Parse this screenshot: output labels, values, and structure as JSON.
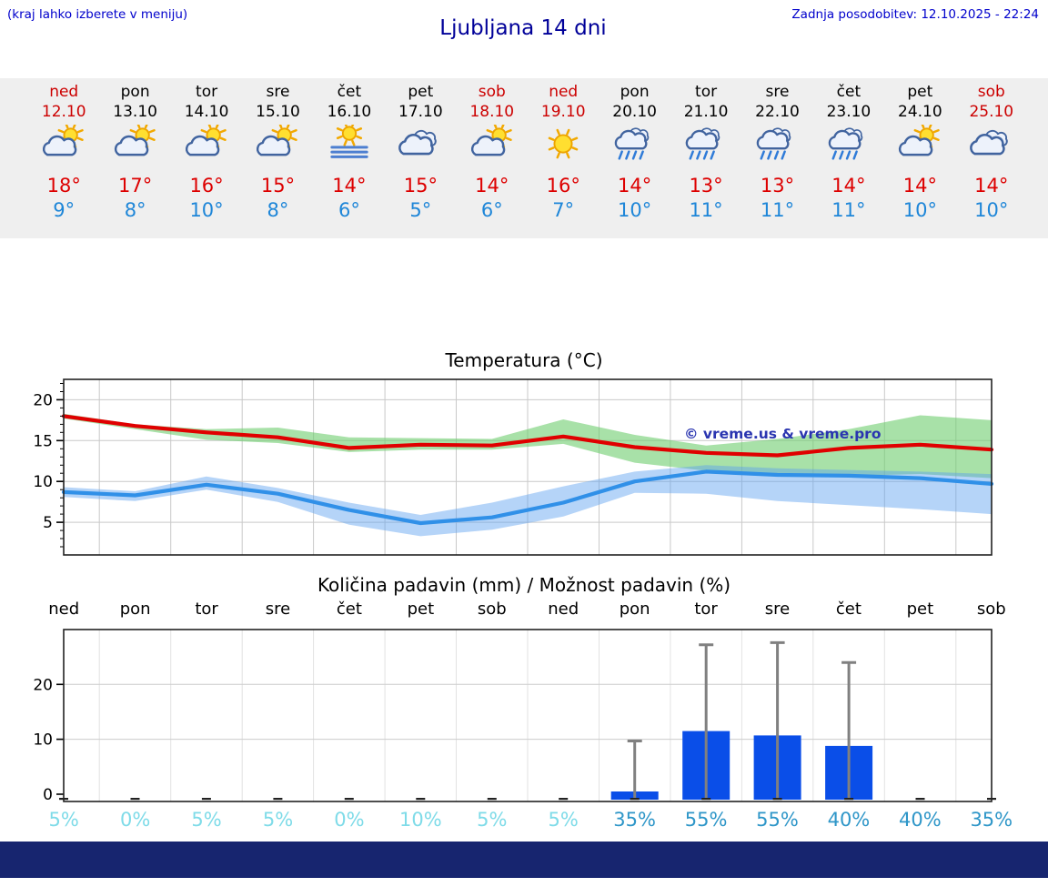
{
  "header": {
    "hint": "(kraj lahko izberete v meniju)",
    "title": "Ljubljana 14 dni",
    "last_update": "Zadnja posodobitev: 12.10.2025 - 22:24"
  },
  "colors": {
    "link_blue": "#0000cc",
    "title_blue": "#000099",
    "weekend_red": "#cc0000",
    "temp_max_red": "#dd0000",
    "temp_min_blue": "#1e86d8",
    "bar_blue": "#0a4ee8",
    "percent_low": "#7edbe8",
    "percent_high": "#2e96c8",
    "strip_bg": "#efefef",
    "bottom_bar": "#17256f"
  },
  "days": [
    {
      "name": "ned",
      "date": "12.10",
      "weekend": true,
      "icon": "partly-cloudy-icon",
      "tmax": "18°",
      "tmin": "9°"
    },
    {
      "name": "pon",
      "date": "13.10",
      "weekend": false,
      "icon": "partly-cloudy-icon",
      "tmax": "17°",
      "tmin": "8°"
    },
    {
      "name": "tor",
      "date": "14.10",
      "weekend": false,
      "icon": "partly-cloudy-icon",
      "tmax": "16°",
      "tmin": "10°"
    },
    {
      "name": "sre",
      "date": "15.10",
      "weekend": false,
      "icon": "partly-cloudy-icon",
      "tmax": "15°",
      "tmin": "8°"
    },
    {
      "name": "čet",
      "date": "16.10",
      "weekend": false,
      "icon": "fog-icon",
      "tmax": "14°",
      "tmin": "6°"
    },
    {
      "name": "pet",
      "date": "17.10",
      "weekend": false,
      "icon": "cloudy-icon",
      "tmax": "15°",
      "tmin": "5°"
    },
    {
      "name": "sob",
      "date": "18.10",
      "weekend": true,
      "icon": "partly-cloudy-icon",
      "tmax": "14°",
      "tmin": "6°"
    },
    {
      "name": "ned",
      "date": "19.10",
      "weekend": true,
      "icon": "sunny-icon",
      "tmax": "16°",
      "tmin": "7°"
    },
    {
      "name": "pon",
      "date": "20.10",
      "weekend": false,
      "icon": "rain-icon",
      "tmax": "14°",
      "tmin": "10°"
    },
    {
      "name": "tor",
      "date": "21.10",
      "weekend": false,
      "icon": "rain-icon",
      "tmax": "13°",
      "tmin": "11°"
    },
    {
      "name": "sre",
      "date": "22.10",
      "weekend": false,
      "icon": "rain-icon",
      "tmax": "13°",
      "tmin": "11°"
    },
    {
      "name": "čet",
      "date": "23.10",
      "weekend": false,
      "icon": "rain-icon",
      "tmax": "14°",
      "tmin": "11°"
    },
    {
      "name": "pet",
      "date": "24.10",
      "weekend": false,
      "icon": "partly-cloudy-icon",
      "tmax": "14°",
      "tmin": "10°"
    },
    {
      "name": "sob",
      "date": "25.10",
      "weekend": true,
      "icon": "cloudy-icon",
      "tmax": "14°",
      "tmin": "10°"
    }
  ],
  "chart_data": [
    {
      "type": "line",
      "title": "Temperatura (°C)",
      "x_labels": [
        "ned",
        "pon",
        "tor",
        "sre",
        "čet",
        "pet",
        "sob",
        "ned",
        "pon",
        "tor",
        "sre",
        "čet",
        "pet",
        "sob"
      ],
      "yticks": [
        5,
        10,
        15,
        20
      ],
      "ylim": [
        1,
        22.5
      ],
      "grid": true,
      "series": [
        {
          "name": "max-temperature",
          "color": "#e00000",
          "values": [
            18.0,
            16.8,
            16.0,
            15.4,
            14.1,
            14.5,
            14.4,
            15.5,
            14.2,
            13.5,
            13.2,
            14.1,
            14.5,
            13.9
          ]
        },
        {
          "name": "min-temperature",
          "color": "#3090e8",
          "values": [
            8.7,
            8.3,
            9.6,
            8.5,
            6.5,
            4.9,
            5.6,
            7.4,
            10.0,
            11.2,
            10.8,
            10.7,
            10.4,
            9.7
          ]
        }
      ],
      "bands": [
        {
          "name": "max-temperature-range",
          "color": "rgba(110,205,110,0.60)",
          "upper": [
            18.3,
            17.0,
            16.4,
            16.6,
            15.4,
            15.3,
            15.2,
            17.6,
            15.7,
            14.4,
            15.2,
            16.4,
            18.1,
            17.5
          ],
          "lower": [
            17.7,
            16.4,
            15.1,
            14.7,
            13.6,
            13.9,
            13.9,
            14.6,
            12.3,
            11.3,
            10.7,
            10.7,
            10.9,
            10.4
          ]
        },
        {
          "name": "min-temperature-range",
          "color": "rgba(90,160,240,0.45)",
          "upper": [
            9.3,
            8.8,
            10.6,
            9.2,
            7.4,
            5.9,
            7.4,
            9.4,
            11.2,
            12.0,
            11.6,
            11.4,
            11.2,
            10.9
          ],
          "lower": [
            8.1,
            7.6,
            9.0,
            7.5,
            4.7,
            3.3,
            4.1,
            5.7,
            8.6,
            8.5,
            7.6,
            7.1,
            6.6,
            6.0
          ]
        }
      ],
      "watermark": "© vreme.us & vreme.pro"
    },
    {
      "type": "bar",
      "title": "Količina padavin (mm) / Možnost padavin (%)",
      "x_labels": [
        "ned",
        "pon",
        "tor",
        "sre",
        "čet",
        "pet",
        "sob",
        "ned",
        "pon",
        "tor",
        "sre",
        "čet",
        "pet",
        "sob"
      ],
      "yticks": [
        0,
        10,
        20
      ],
      "ylim": [
        0,
        28.5
      ],
      "values_mm": [
        0,
        0,
        0,
        0,
        0,
        0,
        0,
        0,
        0.5,
        11.5,
        10.7,
        8.8,
        0,
        0
      ],
      "whisker_max_mm": [
        0,
        0,
        0,
        0,
        0,
        0,
        0,
        0,
        9.7,
        27.2,
        27.6,
        24.0,
        0,
        0
      ],
      "percent": [
        5,
        0,
        5,
        5,
        0,
        10,
        5,
        5,
        35,
        55,
        55,
        40,
        40,
        35
      ],
      "percent_labels": [
        "5%",
        "0%",
        "5%",
        "5%",
        "0%",
        "10%",
        "5%",
        "5%",
        "35%",
        "55%",
        "55%",
        "40%",
        "40%",
        "35%"
      ]
    }
  ]
}
